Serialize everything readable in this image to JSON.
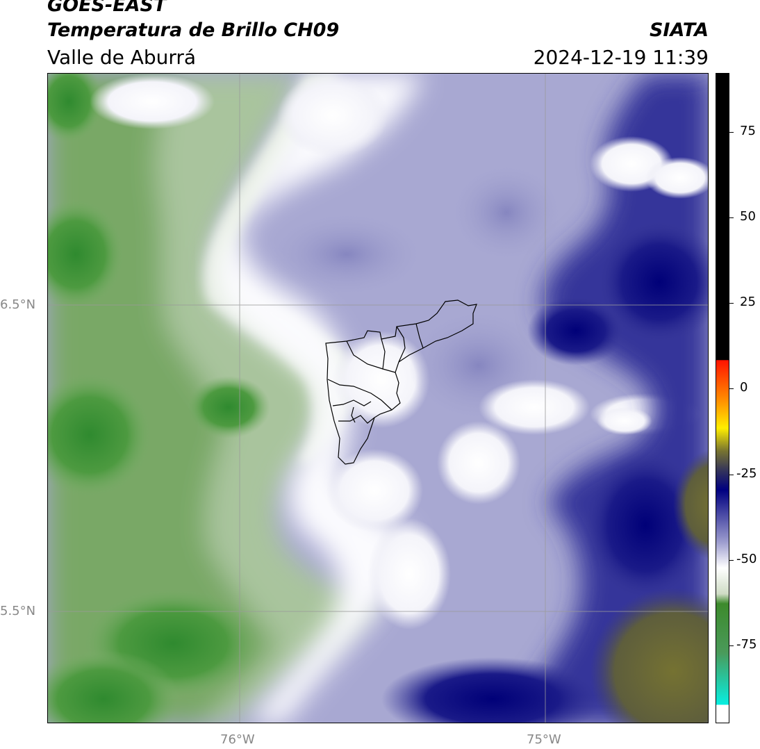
{
  "header": {
    "satellite": "GOES-EAST",
    "product": "Temperatura de Brillo CH09",
    "region": "Valle de Aburrá",
    "agency": "SIATA",
    "datetime": "2024-12-19 11:39"
  },
  "map": {
    "lat_labels": [
      "6.5°N",
      "5.5°N"
    ],
    "lon_labels": [
      "76°W",
      "75°W"
    ],
    "gridlines": true
  },
  "colorbar": {
    "ticks": [
      "75",
      "50",
      "25",
      "0",
      "-25",
      "-50",
      "-75"
    ],
    "colors": {
      "black": "#000000",
      "red": "#ff2000",
      "orange": "#ff9000",
      "yellow": "#ffee00",
      "olive": "#6b6a2a",
      "navy": "#000080",
      "lavender": "#aaaad0",
      "white": "#ffffff",
      "green": "#3f8f2f",
      "cyan": "#10e8d8"
    }
  }
}
